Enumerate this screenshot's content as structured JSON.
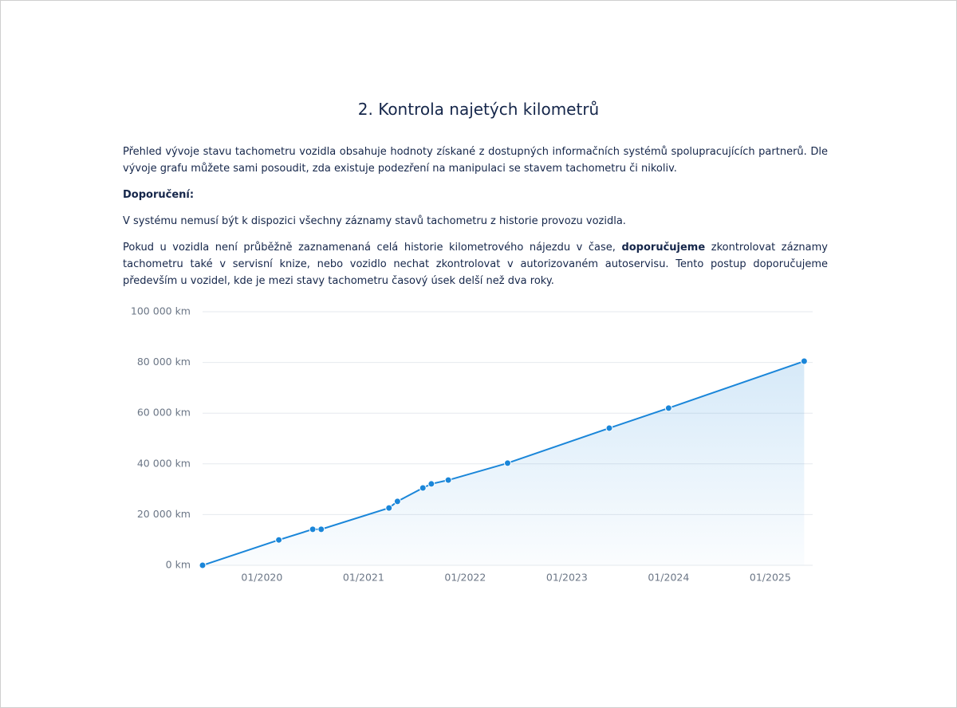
{
  "heading": "2. Kontrola najetých kilometrů",
  "paragraphs": [
    [
      "Přehled vývoje stavu tachometru vozidla obsahuje hodnoty získané z dostupných informačních systémů spolupracujících partnerů. Dle vývoje grafu můžete sami posoudit, zda existuje podezření na manipulaci se stavem tachometru či nikoliv."
    ],
    [
      "Doporučení:"
    ],
    [
      "V systému nemusí být k dispozici všechny záznamy stavů tachometru z historie provozu vozidla."
    ],
    [
      "Pokud u vozidla není průběžně zaznamenaná celá historie kilometrového nájezdu v čase, ",
      "doporučujeme",
      " zkontrolovat záznamy tachometru také v servisní knize, nebo vozidlo nechat zkontrolovat v autorizovaném autoservisu. Tento postup doporučujeme především u vozidel, kde je mezi stavy tachometru časový úsek delší než dva roky."
    ]
  ],
  "chart_data": {
    "type": "area",
    "x": [
      "2019-06",
      "2020-03",
      "2020-07",
      "2020-08",
      "2021-04",
      "2021-05",
      "2021-08",
      "2021-09",
      "2021-11",
      "2022-06",
      "2023-06",
      "2024-01",
      "2025-05"
    ],
    "values": [
      0,
      10000,
      14200,
      14200,
      22600,
      25200,
      30500,
      32100,
      33600,
      40300,
      54100,
      62000,
      80500
    ],
    "color": "#1a86d9",
    "xlim": [
      "2019-06",
      "2025-06"
    ],
    "xticks": [
      {
        "value": "2020-01",
        "label": "01/2020"
      },
      {
        "value": "2021-01",
        "label": "01/2021"
      },
      {
        "value": "2022-01",
        "label": "01/2022"
      },
      {
        "value": "2023-01",
        "label": "01/2023"
      },
      {
        "value": "2024-01",
        "label": "01/2024"
      },
      {
        "value": "2025-01",
        "label": "01/2025"
      }
    ],
    "ylim": [
      0,
      100000
    ],
    "yticks": [
      {
        "value": 0,
        "label": "0 km"
      },
      {
        "value": 20000,
        "label": "20 000 km"
      },
      {
        "value": 40000,
        "label": "40 000 km"
      },
      {
        "value": 60000,
        "label": "60 000 km"
      },
      {
        "value": 80000,
        "label": "80 000 km"
      },
      {
        "value": 100000,
        "label": "100 000 km"
      }
    ],
    "grid": true
  }
}
